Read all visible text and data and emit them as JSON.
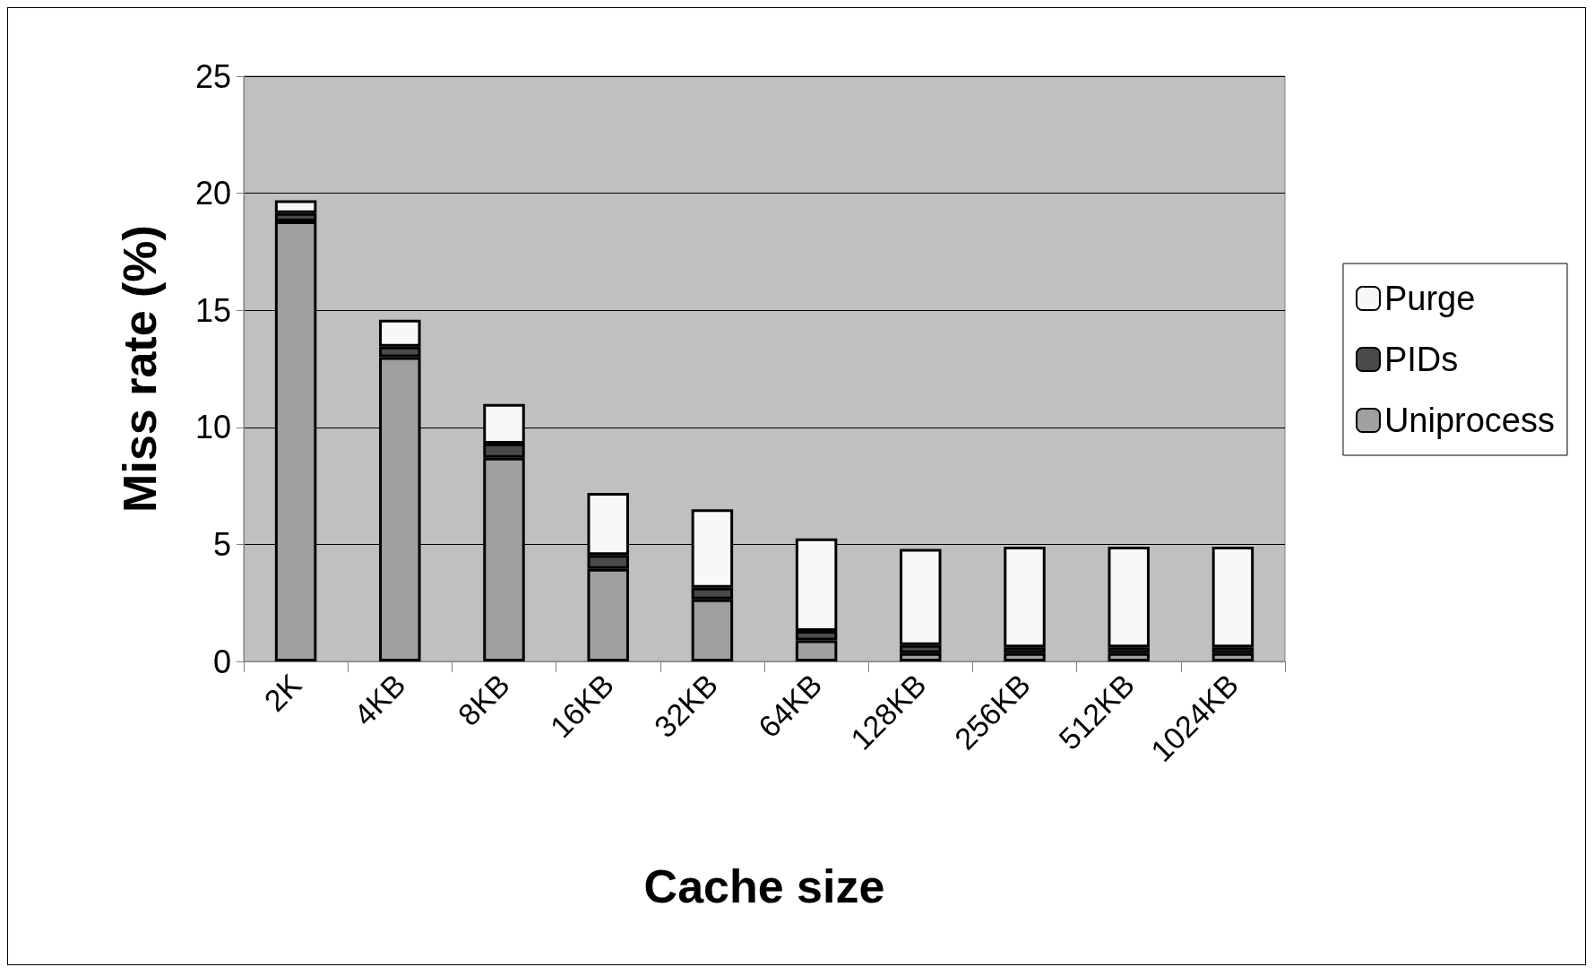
{
  "chart_data": {
    "type": "bar",
    "stacked": true,
    "xlabel": "Cache size",
    "ylabel": "Miss rate (%)",
    "categories": [
      "2K",
      "4KB",
      "8KB",
      "16KB",
      "32KB",
      "64KB",
      "128KB",
      "256KB",
      "512KB",
      "1024KB"
    ],
    "series": [
      {
        "name": "Uniprocess",
        "color": "#a0a0a0",
        "values": [
          18.8,
          13.0,
          8.7,
          3.95,
          2.65,
          0.9,
          0.35,
          0.35,
          0.35,
          0.35
        ]
      },
      {
        "name": "PIDs",
        "color": "#4a4a4a",
        "values": [
          0.35,
          0.45,
          0.6,
          0.6,
          0.5,
          0.4,
          0.35,
          0.25,
          0.25,
          0.25
        ]
      },
      {
        "name": "Purge",
        "color": "#f8f8f8",
        "values": [
          0.55,
          1.15,
          1.7,
          2.65,
          3.35,
          3.95,
          4.1,
          4.3,
          4.3,
          4.3
        ]
      }
    ],
    "ylim": [
      0,
      25
    ],
    "yticks": [
      0,
      5,
      10,
      15,
      20,
      25
    ],
    "grid": "y",
    "legend": "right"
  }
}
